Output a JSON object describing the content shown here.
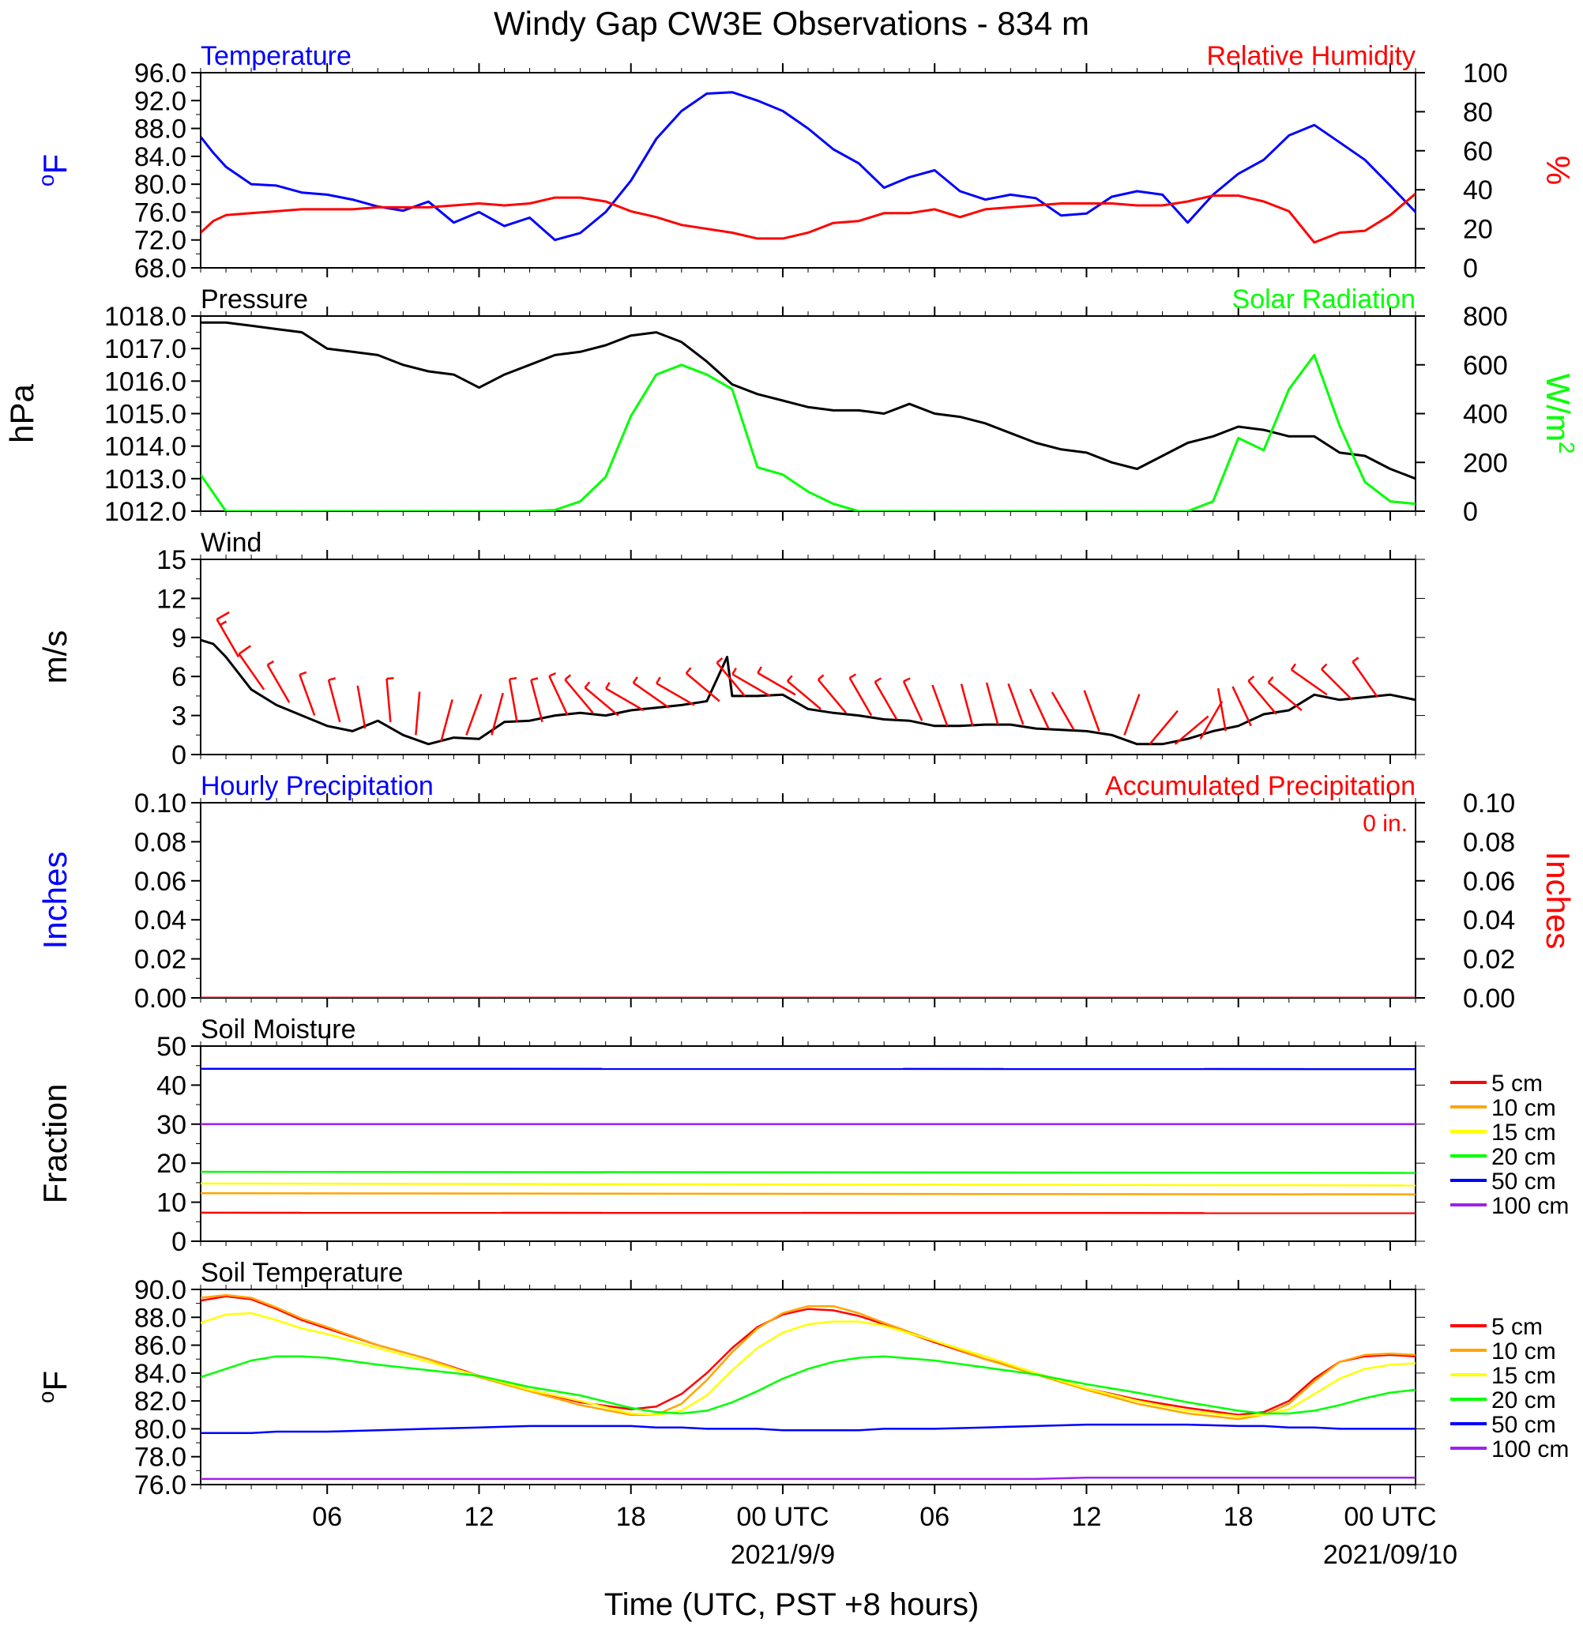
{
  "title": "Windy Gap CW3E Observations - 834 m",
  "x_axis": {
    "label": "Time (UTC, PST +8 hours)",
    "tick_labels": [
      "06",
      "12",
      "18",
      "00 UTC",
      "06",
      "12",
      "18",
      "00 UTC"
    ],
    "tick_hours": [
      6,
      12,
      18,
      24,
      30,
      36,
      42,
      48
    ],
    "date_labels": [
      {
        "text": "2021/9/9",
        "hour": 24
      },
      {
        "text": "2021/09/10",
        "hour": 48
      }
    ],
    "range_hours": [
      1,
      49
    ]
  },
  "colors": {
    "temperature": "#0000ff",
    "rh": "#ff0000",
    "pressure": "#000000",
    "solar": "#00ff00",
    "wind": "#000000",
    "barbs": "#ff0000",
    "hourly_precip": "#0000ff",
    "accum_precip": "#ff0000",
    "d5": "#ff0000",
    "d10": "#ffa500",
    "d15": "#ffff00",
    "d20": "#00ff00",
    "d50": "#0000ff",
    "d100": "#a020f0"
  },
  "chart_data": [
    {
      "id": "temp_rh",
      "type": "line",
      "title_left": "Temperature",
      "title_right": "Relative Humidity",
      "ylabel_left": "oF",
      "ylabel_right": "%",
      "ylim_left": [
        68,
        96
      ],
      "yticks_left": [
        "68.0",
        "72.0",
        "76.0",
        "80.0",
        "84.0",
        "88.0",
        "92.0",
        "96.0"
      ],
      "ylim_right": [
        0,
        100
      ],
      "yticks_right": [
        "0",
        "20",
        "40",
        "60",
        "80",
        "100"
      ],
      "x": [
        1,
        1.5,
        2,
        3,
        4,
        5,
        6,
        7,
        8,
        9,
        10,
        11,
        12,
        13,
        14,
        15,
        16,
        17,
        18,
        19,
        20,
        21,
        22,
        23,
        24,
        25,
        26,
        27,
        28,
        29,
        30,
        31,
        32,
        33,
        34,
        35,
        36,
        37,
        38,
        39,
        40,
        41,
        42,
        43,
        44,
        45,
        46,
        47,
        48,
        49
      ],
      "series": [
        {
          "name": "Temperature",
          "axis": "left",
          "values": [
            86.8,
            84.5,
            82.5,
            80.0,
            79.8,
            78.8,
            78.5,
            77.8,
            76.8,
            76.2,
            77.5,
            74.5,
            76.0,
            74.0,
            75.2,
            72.0,
            73.0,
            76.0,
            80.5,
            86.5,
            90.5,
            93.0,
            93.2,
            92.0,
            90.5,
            88.0,
            85.0,
            83.0,
            79.5,
            81.0,
            82.0,
            79.0,
            77.8,
            78.5,
            78.0,
            75.5,
            75.8,
            78.2,
            79.0,
            78.5,
            74.5,
            78.5,
            81.5,
            83.5,
            87.0,
            88.5,
            86.0,
            83.5,
            79.8,
            76.0
          ]
        },
        {
          "name": "Relative Humidity",
          "axis": "right",
          "values": [
            18,
            24,
            27,
            28,
            29,
            30,
            30,
            30,
            31,
            31,
            31,
            32,
            33,
            32,
            33,
            36,
            36,
            34,
            29,
            26,
            22,
            20,
            18,
            15,
            15,
            18,
            23,
            24,
            28,
            28,
            30,
            26,
            30,
            31,
            32,
            33,
            33,
            33,
            32,
            32,
            34,
            37,
            37,
            34,
            29,
            13,
            18,
            19,
            27,
            38
          ]
        }
      ]
    },
    {
      "id": "pressure_solar",
      "type": "line",
      "title_left": "Pressure",
      "title_right": "Solar Radiation",
      "ylabel_left": "hPa",
      "ylabel_right": "W/m2",
      "ylim_left": [
        1012,
        1018
      ],
      "yticks_left": [
        "1012.0",
        "1013.0",
        "1014.0",
        "1015.0",
        "1016.0",
        "1017.0",
        "1018.0"
      ],
      "ylim_right": [
        0,
        800
      ],
      "yticks_right": [
        "0",
        "200",
        "400",
        "600",
        "800"
      ],
      "x": [
        1,
        2,
        3,
        4,
        5,
        6,
        7,
        8,
        9,
        10,
        11,
        12,
        13,
        14,
        15,
        16,
        17,
        18,
        19,
        20,
        21,
        22,
        23,
        24,
        25,
        26,
        27,
        28,
        29,
        30,
        31,
        32,
        33,
        34,
        35,
        36,
        37,
        38,
        39,
        40,
        41,
        42,
        43,
        44,
        45,
        46,
        47,
        48,
        49
      ],
      "series": [
        {
          "name": "Pressure",
          "axis": "left",
          "values": [
            1017.8,
            1017.8,
            1017.7,
            1017.6,
            1017.5,
            1017.0,
            1016.9,
            1016.8,
            1016.5,
            1016.3,
            1016.2,
            1015.8,
            1016.2,
            1016.5,
            1016.8,
            1016.9,
            1017.1,
            1017.4,
            1017.5,
            1017.2,
            1016.6,
            1015.9,
            1015.6,
            1015.4,
            1015.2,
            1015.1,
            1015.1,
            1015.0,
            1015.3,
            1015.0,
            1014.9,
            1014.7,
            1014.4,
            1014.1,
            1013.9,
            1013.8,
            1013.5,
            1013.3,
            1013.7,
            1014.1,
            1014.3,
            1014.6,
            1014.5,
            1014.3,
            1014.3,
            1013.8,
            1013.7,
            1013.3,
            1013.0
          ]
        },
        {
          "name": "Solar Radiation",
          "axis": "right",
          "values": [
            150,
            0,
            0,
            0,
            0,
            0,
            0,
            0,
            0,
            0,
            0,
            0,
            0,
            0,
            5,
            40,
            140,
            390,
            560,
            600,
            560,
            500,
            180,
            150,
            80,
            30,
            0,
            0,
            0,
            0,
            0,
            0,
            0,
            0,
            0,
            0,
            0,
            0,
            0,
            0,
            40,
            300,
            250,
            500,
            640,
            350,
            120,
            40,
            30
          ]
        }
      ]
    },
    {
      "id": "wind",
      "type": "line",
      "title_left": "Wind",
      "ylabel_left": "m/s",
      "ylim_left": [
        0,
        15
      ],
      "yticks_left": [
        "0",
        "3",
        "6",
        "9",
        "12",
        "15"
      ],
      "x": [
        1,
        1.5,
        2,
        3,
        4,
        5,
        6,
        7,
        8,
        9,
        10,
        11,
        12,
        13,
        14,
        15,
        16,
        17,
        18,
        19,
        20,
        21,
        21.8,
        22,
        23,
        24,
        25,
        26,
        27,
        28,
        29,
        30,
        31,
        32,
        33,
        34,
        35,
        36,
        37,
        38,
        39,
        40,
        41,
        42,
        43,
        44,
        45,
        46,
        47,
        48,
        49
      ],
      "series": [
        {
          "name": "Wind Speed",
          "axis": "left",
          "values": [
            8.8,
            8.5,
            7.5,
            5.0,
            3.8,
            3.0,
            2.2,
            1.8,
            2.6,
            1.5,
            0.8,
            1.3,
            1.2,
            2.5,
            2.6,
            3.0,
            3.2,
            3.0,
            3.4,
            3.6,
            3.8,
            4.1,
            7.5,
            4.5,
            4.5,
            4.6,
            3.5,
            3.2,
            3.0,
            2.7,
            2.6,
            2.2,
            2.2,
            2.3,
            2.3,
            2.0,
            1.9,
            1.8,
            1.5,
            0.8,
            0.8,
            1.2,
            1.8,
            2.2,
            3.1,
            3.4,
            4.6,
            4.2,
            4.4,
            4.6,
            4.2
          ]
        }
      ],
      "barbs": {
        "x": [
          2.5,
          3.5,
          4.5,
          5.5,
          6.5,
          7.5,
          8.5,
          9.5,
          10.5,
          11.5,
          12.5,
          13.5,
          14.5,
          15.5,
          16.5,
          17.5,
          18.5,
          19.5,
          20.5,
          21.5,
          22.5,
          23.5,
          24.5,
          25.5,
          26.5,
          27.5,
          28.5,
          29.5,
          30.5,
          31.5,
          32.5,
          33.5,
          34.5,
          35.5,
          36.5,
          37.5,
          38.5,
          39.5,
          40.5,
          41.5,
          42.5,
          43.5,
          44.5,
          45.5,
          46.5,
          47.5
        ],
        "speed": [
          7.5,
          5.0,
          4.0,
          3.0,
          2.5,
          2.0,
          2.5,
          1.5,
          1.0,
          1.5,
          1.5,
          2.5,
          2.5,
          3.0,
          3.2,
          3.0,
          3.4,
          3.6,
          3.8,
          4.1,
          4.5,
          4.5,
          4.6,
          3.5,
          3.2,
          3.0,
          2.7,
          2.6,
          2.2,
          2.2,
          2.3,
          2.3,
          2.0,
          1.9,
          1.8,
          1.5,
          0.8,
          0.8,
          1.2,
          1.8,
          2.2,
          3.1,
          3.4,
          4.6,
          4.2,
          4.4
        ],
        "direction_deg": [
          330,
          325,
          330,
          340,
          345,
          350,
          355,
          5,
          15,
          20,
          15,
          350,
          345,
          335,
          320,
          310,
          300,
          305,
          300,
          310,
          320,
          300,
          300,
          310,
          320,
          330,
          330,
          335,
          340,
          345,
          345,
          340,
          335,
          330,
          340,
          20,
          40,
          50,
          30,
          350,
          335,
          320,
          310,
          305,
          315,
          325
        ]
      }
    },
    {
      "id": "precip",
      "type": "line",
      "title_left": "Hourly Precipitation",
      "title_right": "Accumulated Precipitation",
      "annotation": "0 in.",
      "ylabel_left": "Inches",
      "ylabel_right": "Inches",
      "ylim_left": [
        0,
        0.1
      ],
      "yticks_left": [
        "0.00",
        "0.02",
        "0.04",
        "0.06",
        "0.08",
        "0.10"
      ],
      "ylim_right": [
        0,
        0.1
      ],
      "yticks_right": [
        "0.00",
        "0.02",
        "0.04",
        "0.06",
        "0.08",
        "0.10"
      ],
      "x": [
        1,
        49
      ],
      "series": [
        {
          "name": "Hourly Precipitation",
          "axis": "left",
          "values": [
            0,
            0
          ]
        },
        {
          "name": "Accumulated Precipitation",
          "axis": "right",
          "values": [
            0,
            0
          ]
        }
      ]
    },
    {
      "id": "soil_moisture",
      "type": "line",
      "title_left": "Soil Moisture",
      "ylabel_left": "Fraction",
      "ylim_left": [
        0,
        50
      ],
      "yticks_left": [
        "0",
        "10",
        "20",
        "30",
        "40",
        "50"
      ],
      "x": [
        1,
        49
      ],
      "series": [
        {
          "name": "5 cm",
          "color_key": "d5",
          "values": [
            7.3,
            7.2
          ]
        },
        {
          "name": "10 cm",
          "color_key": "d10",
          "values": [
            12.3,
            12.0
          ]
        },
        {
          "name": "15 cm",
          "color_key": "d15",
          "values": [
            14.8,
            14.3
          ]
        },
        {
          "name": "20 cm",
          "color_key": "d20",
          "values": [
            17.8,
            17.5
          ]
        },
        {
          "name": "50 cm",
          "color_key": "d50",
          "values": [
            44.2,
            44.1
          ]
        },
        {
          "name": "100 cm",
          "color_key": "d100",
          "values": [
            30.0,
            30.0
          ]
        }
      ]
    },
    {
      "id": "soil_temp",
      "type": "line",
      "title_left": "Soil Temperature",
      "ylabel_left": "oF",
      "ylim_left": [
        76,
        90
      ],
      "yticks_left": [
        "76.0",
        "78.0",
        "80.0",
        "82.0",
        "84.0",
        "86.0",
        "88.0",
        "90.0"
      ],
      "x": [
        1,
        2,
        3,
        4,
        5,
        6,
        8,
        10,
        12,
        14,
        16,
        18,
        19,
        20,
        21,
        22,
        23,
        24,
        25,
        26,
        27,
        28,
        30,
        32,
        34,
        36,
        38,
        40,
        42,
        43,
        44,
        45,
        46,
        47,
        48,
        49
      ],
      "series": [
        {
          "name": "5 cm",
          "color_key": "d5",
          "values": [
            89.2,
            89.5,
            89.3,
            88.6,
            87.8,
            87.2,
            86.0,
            85.0,
            83.8,
            82.8,
            81.9,
            81.4,
            81.6,
            82.5,
            84.0,
            85.8,
            87.3,
            88.2,
            88.6,
            88.5,
            88.1,
            87.5,
            86.2,
            85.0,
            84.0,
            82.9,
            82.1,
            81.5,
            81.0,
            81.2,
            82.0,
            83.6,
            84.8,
            85.2,
            85.3,
            85.2
          ]
        },
        {
          "name": "10 cm",
          "color_key": "d10",
          "values": [
            89.4,
            89.6,
            89.4,
            88.7,
            87.9,
            87.3,
            86.0,
            85.0,
            83.7,
            82.7,
            81.7,
            81.0,
            81.0,
            81.8,
            83.5,
            85.5,
            87.2,
            88.3,
            88.8,
            88.8,
            88.3,
            87.6,
            86.3,
            85.0,
            83.9,
            82.8,
            81.8,
            81.1,
            80.7,
            81.0,
            81.8,
            83.4,
            84.8,
            85.3,
            85.4,
            85.3
          ]
        },
        {
          "name": "15 cm",
          "color_key": "d15",
          "values": [
            87.6,
            88.2,
            88.3,
            87.8,
            87.2,
            86.8,
            85.8,
            84.8,
            83.8,
            82.8,
            82.0,
            81.1,
            81.0,
            81.3,
            82.4,
            84.2,
            85.8,
            86.9,
            87.5,
            87.7,
            87.7,
            87.4,
            86.3,
            85.2,
            84.0,
            82.9,
            82.0,
            81.3,
            80.9,
            81.0,
            81.4,
            82.5,
            83.6,
            84.3,
            84.6,
            84.7
          ]
        },
        {
          "name": "20 cm",
          "color_key": "d20",
          "values": [
            83.7,
            84.3,
            84.9,
            85.2,
            85.2,
            85.1,
            84.6,
            84.2,
            83.8,
            83.0,
            82.4,
            81.5,
            81.2,
            81.1,
            81.3,
            81.9,
            82.7,
            83.6,
            84.3,
            84.8,
            85.1,
            85.2,
            84.9,
            84.4,
            83.9,
            83.2,
            82.6,
            81.9,
            81.3,
            81.1,
            81.1,
            81.3,
            81.7,
            82.2,
            82.6,
            82.8
          ]
        },
        {
          "name": "50 cm",
          "color_key": "d50",
          "values": [
            79.7,
            79.7,
            79.7,
            79.8,
            79.8,
            79.8,
            79.9,
            80.0,
            80.1,
            80.2,
            80.2,
            80.2,
            80.1,
            80.1,
            80.0,
            80.0,
            80.0,
            79.9,
            79.9,
            79.9,
            79.9,
            80.0,
            80.0,
            80.1,
            80.2,
            80.3,
            80.3,
            80.3,
            80.2,
            80.2,
            80.1,
            80.1,
            80.0,
            80.0,
            80.0,
            80.0
          ]
        },
        {
          "name": "100 cm",
          "color_key": "d100",
          "values": [
            76.4,
            76.4,
            76.4,
            76.4,
            76.4,
            76.4,
            76.4,
            76.4,
            76.4,
            76.4,
            76.4,
            76.4,
            76.4,
            76.4,
            76.4,
            76.4,
            76.4,
            76.4,
            76.4,
            76.4,
            76.4,
            76.4,
            76.4,
            76.4,
            76.4,
            76.5,
            76.5,
            76.5,
            76.5,
            76.5,
            76.5,
            76.5,
            76.5,
            76.5,
            76.5,
            76.5
          ]
        }
      ]
    }
  ],
  "legend": {
    "items": [
      {
        "label": "5 cm",
        "color_key": "d5"
      },
      {
        "label": "10 cm",
        "color_key": "d10"
      },
      {
        "label": "15 cm",
        "color_key": "d15"
      },
      {
        "label": "20 cm",
        "color_key": "d20"
      },
      {
        "label": "50 cm",
        "color_key": "d50"
      },
      {
        "label": "100 cm",
        "color_key": "d100"
      }
    ]
  }
}
